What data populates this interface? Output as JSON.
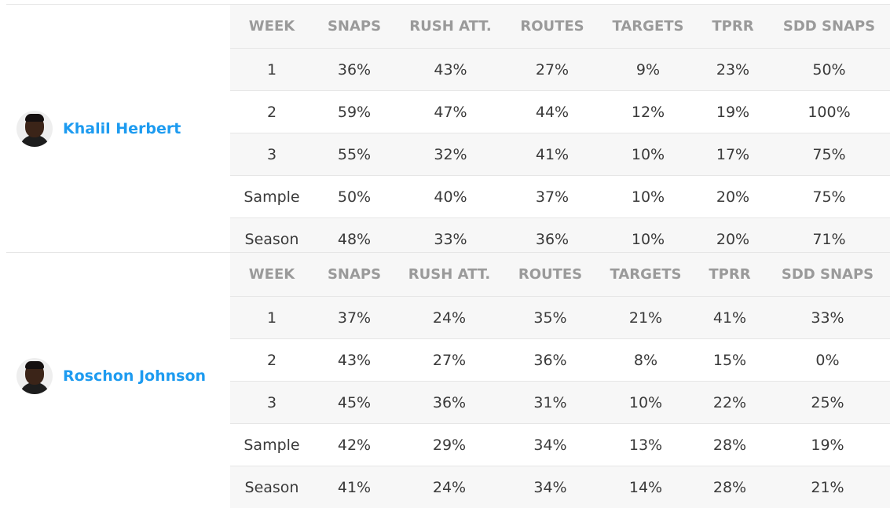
{
  "columns": [
    "WEEK",
    "SNAPS",
    "RUSH ATT.",
    "ROUTES",
    "TARGETS",
    "TPRR",
    "SDD SNAPS"
  ],
  "players": [
    {
      "name": "Khalil Herbert",
      "rows": [
        [
          "1",
          "36%",
          "43%",
          "27%",
          "9%",
          "23%",
          "50%"
        ],
        [
          "2",
          "59%",
          "47%",
          "44%",
          "12%",
          "19%",
          "100%"
        ],
        [
          "3",
          "55%",
          "32%",
          "41%",
          "10%",
          "17%",
          "75%"
        ],
        [
          "Sample",
          "50%",
          "40%",
          "37%",
          "10%",
          "20%",
          "75%"
        ],
        [
          "Season",
          "48%",
          "33%",
          "36%",
          "10%",
          "20%",
          "71%"
        ]
      ]
    },
    {
      "name": "Roschon Johnson",
      "rows": [
        [
          "1",
          "37%",
          "24%",
          "35%",
          "21%",
          "41%",
          "33%"
        ],
        [
          "2",
          "43%",
          "27%",
          "36%",
          "8%",
          "15%",
          "0%"
        ],
        [
          "3",
          "45%",
          "36%",
          "31%",
          "10%",
          "22%",
          "25%"
        ],
        [
          "Sample",
          "42%",
          "29%",
          "34%",
          "13%",
          "28%",
          "19%"
        ],
        [
          "Season",
          "41%",
          "24%",
          "34%",
          "14%",
          "28%",
          "21%"
        ]
      ]
    }
  ],
  "colors": {
    "name_link": "#1d9bf0",
    "header_text": "#9a9a9a",
    "stripe": "#f7f7f7",
    "border": "#e6e6e6"
  }
}
